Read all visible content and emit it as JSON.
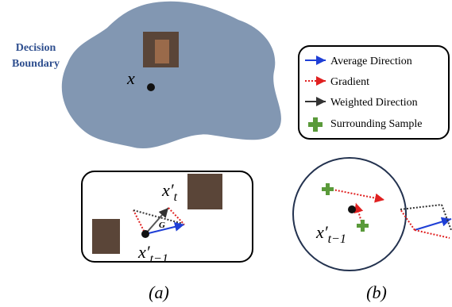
{
  "boundary_label": [
    "Decision",
    "Boundary"
  ],
  "point_label": "x",
  "legend": [
    "Average Direction",
    "Gradient",
    "Weighted Direction",
    "Surrounding Sample"
  ],
  "panel_a": {
    "upper_label": {
      "base": "x′",
      "sub": "t"
    },
    "lower_label": {
      "base": "x′",
      "sub": "t−1"
    },
    "vector_label": "G"
  },
  "panel_b": {
    "label": {
      "base": "x′",
      "sub": "t−1"
    }
  },
  "captions": [
    "(a)",
    "(b)"
  ]
}
